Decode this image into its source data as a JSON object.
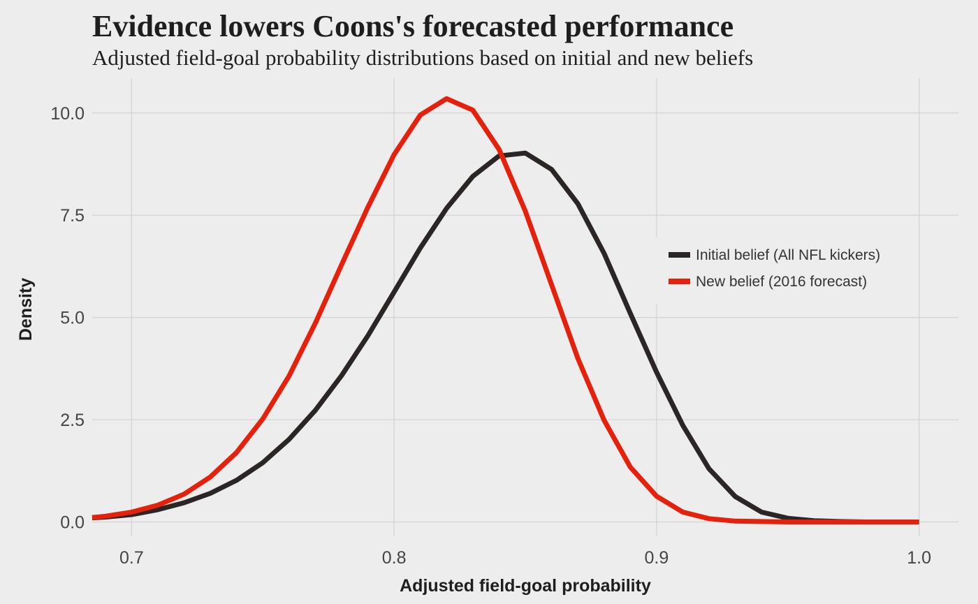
{
  "chart_data": {
    "type": "line",
    "title": "Evidence lowers Coons's forecasted performance",
    "subtitle": "Adjusted field-goal probability distributions based on initial and new beliefs",
    "xlabel": "Adjusted field-goal probability",
    "ylabel": "Density",
    "xlim": [
      0.685,
      1.015
    ],
    "ylim": [
      -0.35,
      10.85
    ],
    "x_ticks": [
      0.7,
      0.8,
      0.9,
      1.0
    ],
    "x_tick_labels": [
      "0.7",
      "0.8",
      "0.9",
      "1.0"
    ],
    "y_ticks": [
      0,
      2.5,
      5,
      7.5,
      10
    ],
    "y_tick_labels": [
      "0.0",
      "2.5",
      "5.0",
      "7.5",
      "10.0"
    ],
    "grid": true,
    "legend_position": "right",
    "x": [
      0.685,
      0.69,
      0.7,
      0.71,
      0.72,
      0.73,
      0.74,
      0.75,
      0.76,
      0.77,
      0.78,
      0.79,
      0.8,
      0.81,
      0.82,
      0.83,
      0.84,
      0.85,
      0.86,
      0.87,
      0.88,
      0.89,
      0.9,
      0.91,
      0.92,
      0.93,
      0.94,
      0.95,
      0.96,
      0.97,
      0.98,
      0.99,
      1.0
    ],
    "series": [
      {
        "name": "Initial belief (All NFL kickers)",
        "color": "#2b2525",
        "values": [
          0.1,
          0.12,
          0.18,
          0.3,
          0.47,
          0.7,
          1.02,
          1.45,
          2.02,
          2.73,
          3.58,
          4.55,
          5.62,
          6.7,
          7.67,
          8.45,
          8.95,
          9.02,
          8.62,
          7.78,
          6.57,
          5.1,
          3.66,
          2.36,
          1.3,
          0.62,
          0.24,
          0.09,
          0.03,
          0.01,
          0.0,
          0.0,
          0.0
        ]
      },
      {
        "name": "New belief (2016 forecast)",
        "color": "#e5200b",
        "values": [
          0.11,
          0.14,
          0.24,
          0.41,
          0.68,
          1.1,
          1.7,
          2.52,
          3.57,
          4.86,
          6.29,
          7.69,
          8.98,
          9.95,
          10.35,
          10.07,
          9.11,
          7.6,
          5.8,
          4.0,
          2.49,
          1.34,
          0.63,
          0.24,
          0.08,
          0.02,
          0.01,
          0.0,
          0.0,
          0.0,
          0.0,
          0.0,
          0.0
        ]
      }
    ]
  },
  "colors": {
    "background": "#ededed",
    "grid": "#d2d2d2",
    "text": "#1e1e1e"
  }
}
